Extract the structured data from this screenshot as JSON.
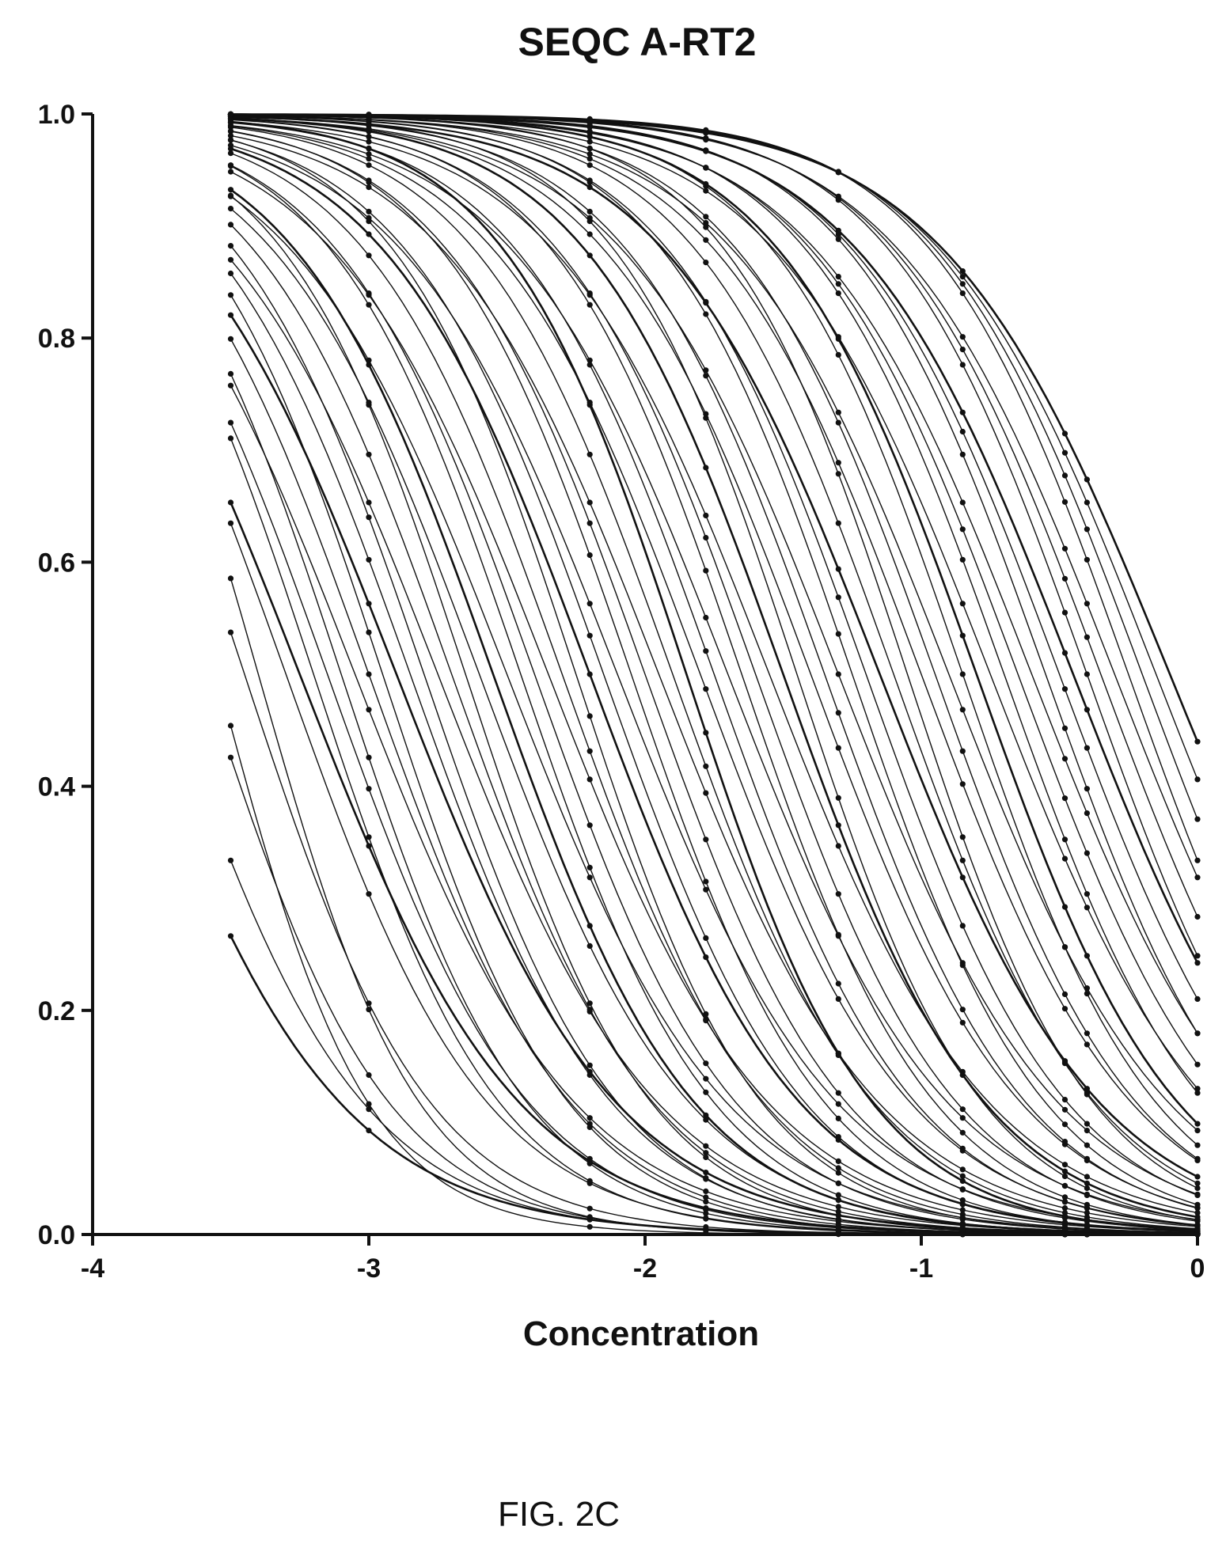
{
  "chart_data": {
    "type": "line",
    "title": "SEQC A-RT2",
    "xlabel": "Concentration",
    "ylabel": "",
    "xlim": [
      -4,
      0
    ],
    "ylim": [
      0,
      1
    ],
    "x_ticks": [
      -4,
      -3,
      -2,
      -1,
      0
    ],
    "y_ticks": [
      0.0,
      0.2,
      0.4,
      0.6,
      0.8,
      1.0
    ],
    "x_tick_labels": [
      "-4",
      "-3",
      "-2",
      "-1",
      "0"
    ],
    "y_tick_labels": [
      "0.0",
      "0.2",
      "0.4",
      "0.6",
      "0.8",
      "1.0"
    ],
    "grid": false,
    "legend": "none",
    "curve_model": "1 / (1 + 10^(hill * (x - ic50)))",
    "curve_x_range": [
      -3.5,
      0
    ],
    "dose_levels": [
      -3.5,
      -3.0,
      -2.2,
      -1.78,
      -1.3,
      -0.85,
      -0.48,
      -0.4,
      0.0
    ],
    "series": [
      {
        "ic50": -3.9,
        "hill": 1.1
      },
      {
        "ic50": -3.75,
        "hill": 1.2
      },
      {
        "ic50": -3.6,
        "hill": 1.3
      },
      {
        "ic50": -3.55,
        "hill": 1.6
      },
      {
        "ic50": -3.45,
        "hill": 1.3
      },
      {
        "ic50": -3.4,
        "hill": 1.5
      },
      {
        "ic50": -3.3,
        "hill": 1.2
      },
      {
        "ic50": -3.25,
        "hill": 1.1
      },
      {
        "ic50": -3.2,
        "hill": 1.3
      },
      {
        "ic50": -3.15,
        "hill": 1.2
      },
      {
        "ic50": -3.1,
        "hill": 1.3
      },
      {
        "ic50": -3.05,
        "hill": 1.1
      },
      {
        "ic50": -3.0,
        "hill": 1.2
      },
      {
        "ic50": -2.95,
        "hill": 1.3
      },
      {
        "ic50": -2.9,
        "hill": 1.1
      },
      {
        "ic50": -2.85,
        "hill": 1.2
      },
      {
        "ic50": -2.8,
        "hill": 1.25
      },
      {
        "ic50": -2.75,
        "hill": 1.1
      },
      {
        "ic50": -2.7,
        "hill": 1.2
      },
      {
        "ic50": -2.65,
        "hill": 1.3
      },
      {
        "ic50": -2.6,
        "hill": 1.15
      },
      {
        "ic50": -2.55,
        "hill": 1.2
      },
      {
        "ic50": -2.5,
        "hill": 1.1
      },
      {
        "ic50": -2.45,
        "hill": 1.25
      },
      {
        "ic50": -2.4,
        "hill": 1.2
      },
      {
        "ic50": -2.35,
        "hill": 1.1
      },
      {
        "ic50": -2.3,
        "hill": 1.2
      },
      {
        "ic50": -2.25,
        "hill": 1.3
      },
      {
        "ic50": -2.2,
        "hill": 1.15
      },
      {
        "ic50": -2.15,
        "hill": 1.2
      },
      {
        "ic50": -2.1,
        "hill": 1.1
      },
      {
        "ic50": -2.05,
        "hill": 1.25
      },
      {
        "ic50": -2.0,
        "hill": 1.2
      },
      {
        "ic50": -1.95,
        "hill": 1.1
      },
      {
        "ic50": -1.9,
        "hill": 1.2
      },
      {
        "ic50": -1.85,
        "hill": 1.3
      },
      {
        "ic50": -1.8,
        "hill": 1.15
      },
      {
        "ic50": -1.75,
        "hill": 1.2
      },
      {
        "ic50": -1.7,
        "hill": 1.1
      },
      {
        "ic50": -1.65,
        "hill": 1.25
      },
      {
        "ic50": -1.6,
        "hill": 1.2
      },
      {
        "ic50": -1.55,
        "hill": 1.1
      },
      {
        "ic50": -1.5,
        "hill": 1.2
      },
      {
        "ic50": -1.45,
        "hill": 1.3
      },
      {
        "ic50": -1.4,
        "hill": 1.15
      },
      {
        "ic50": -1.35,
        "hill": 1.2
      },
      {
        "ic50": -1.3,
        "hill": 1.1
      },
      {
        "ic50": -1.25,
        "hill": 1.25
      },
      {
        "ic50": -1.2,
        "hill": 1.2
      },
      {
        "ic50": -1.15,
        "hill": 1.1
      },
      {
        "ic50": -1.1,
        "hill": 1.2
      },
      {
        "ic50": -1.05,
        "hill": 1.3
      },
      {
        "ic50": -1.0,
        "hill": 1.15
      },
      {
        "ic50": -0.95,
        "hill": 1.2
      },
      {
        "ic50": -0.9,
        "hill": 1.1
      },
      {
        "ic50": -0.85,
        "hill": 1.25
      },
      {
        "ic50": -0.8,
        "hill": 1.2
      },
      {
        "ic50": -0.75,
        "hill": 1.1
      },
      {
        "ic50": -0.7,
        "hill": 1.2
      },
      {
        "ic50": -0.65,
        "hill": 1.15
      },
      {
        "ic50": -0.6,
        "hill": 1.1
      },
      {
        "ic50": -0.55,
        "hill": 1.2
      },
      {
        "ic50": -0.5,
        "hill": 1.15
      },
      {
        "ic50": -0.45,
        "hill": 1.1
      },
      {
        "ic50": -0.4,
        "hill": 1.2
      },
      {
        "ic50": -0.35,
        "hill": 1.15
      },
      {
        "ic50": -0.3,
        "hill": 1.1
      },
      {
        "ic50": -0.25,
        "hill": 1.2
      },
      {
        "ic50": -0.2,
        "hill": 1.15
      },
      {
        "ic50": -0.15,
        "hill": 1.1
      },
      {
        "ic50": -0.1,
        "hill": 1.05
      }
    ]
  },
  "caption": "FIG. 2C"
}
